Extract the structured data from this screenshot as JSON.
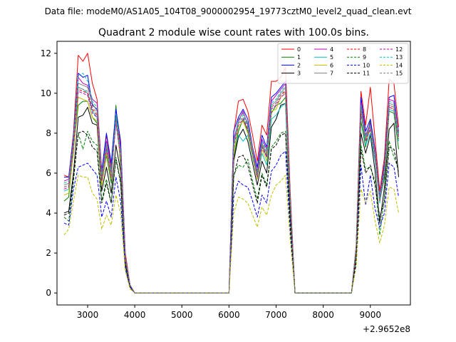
{
  "chart_data": {
    "type": "line",
    "suptitle": "Data file: modeM0/AS1A05_104T08_9000002954_19773cztM0_level2_quad_clean.evt",
    "title": "Quadrant 2 module wise count rates with 100.0s bins.",
    "xlabel": "",
    "ylabel": "",
    "x_offset_label": "+2.9652e8",
    "xlim": [
      2350,
      9850
    ],
    "ylim": [
      -0.6,
      12.6
    ],
    "x_ticks": [
      3000,
      4000,
      5000,
      6000,
      7000,
      8000,
      9000
    ],
    "y_ticks": [
      0,
      2,
      4,
      6,
      8,
      10,
      12
    ],
    "legend": {
      "position": "top-right",
      "columns": 4
    },
    "x": [
      2500,
      2600,
      2700,
      2800,
      2900,
      3000,
      3100,
      3200,
      3300,
      3400,
      3500,
      3600,
      3700,
      3800,
      3900,
      4000,
      4100,
      4200,
      4300,
      4400,
      4500,
      4600,
      4700,
      4800,
      4900,
      5000,
      5100,
      5200,
      5300,
      5400,
      5500,
      5600,
      5700,
      5800,
      5900,
      6000,
      6100,
      6200,
      6300,
      6400,
      6500,
      6600,
      6700,
      6800,
      6900,
      7000,
      7100,
      7200,
      7300,
      7400,
      7500,
      7600,
      7700,
      7800,
      7900,
      8000,
      8100,
      8200,
      8300,
      8400,
      8500,
      8600,
      8700,
      8800,
      8900,
      9000,
      9100,
      9200,
      9300,
      9400,
      9500,
      9600
    ],
    "series": [
      {
        "name": "0",
        "color": "#ff0000",
        "dash": false,
        "active": [
          5.9,
          5.8,
          8.0,
          11.9,
          11.6,
          12.0,
          10.5,
          9.7,
          6.1,
          7.9,
          6.3,
          8.7,
          7.5,
          2.0,
          0.4,
          0,
          0,
          0,
          0,
          0,
          0,
          0,
          0,
          0,
          0,
          0,
          0,
          0,
          0,
          0,
          0,
          0,
          0,
          0,
          0,
          0,
          8.0,
          9.6,
          9.7,
          9.1,
          7.9,
          6.6,
          8.4,
          7.9,
          10.6,
          10.6,
          10.8,
          11.3,
          5.0,
          0,
          0,
          0,
          0,
          0,
          0,
          0,
          0,
          0,
          0,
          0,
          0,
          0,
          2.4,
          10.1,
          8.4,
          10.3,
          7.7,
          5.1,
          6.8,
          10.7,
          10.5,
          8.3
        ]
      },
      {
        "name": "1",
        "color": "#008000",
        "dash": false,
        "active": [
          4.6,
          4.8,
          7.2,
          9.4,
          9.6,
          9.6,
          8.8,
          8.5,
          5.4,
          6.9,
          5.5,
          9.4,
          6.3,
          1.7,
          0.4,
          0,
          0,
          0,
          0,
          0,
          0,
          0,
          0,
          0,
          0,
          0,
          0,
          0,
          0,
          0,
          0,
          0,
          0,
          0,
          0,
          0,
          6.7,
          8.1,
          8.7,
          8.1,
          7.0,
          5.8,
          7.4,
          6.8,
          9.0,
          9.4,
          9.5,
          9.8,
          4.4,
          0,
          0,
          0,
          0,
          0,
          0,
          0,
          0,
          0,
          0,
          0,
          0,
          0,
          2.1,
          8.6,
          7.3,
          8.7,
          6.8,
          4.6,
          5.8,
          9.1,
          9.0,
          7.2
        ]
      },
      {
        "name": "2",
        "color": "#0000ff",
        "dash": false,
        "active": [
          5.8,
          5.8,
          7.8,
          11.0,
          10.8,
          10.9,
          9.4,
          9.2,
          6.1,
          8.0,
          6.5,
          9.2,
          7.6,
          1.8,
          0.4,
          0,
          0,
          0,
          0,
          0,
          0,
          0,
          0,
          0,
          0,
          0,
          0,
          0,
          0,
          0,
          0,
          0,
          0,
          0,
          0,
          0,
          8.1,
          8.8,
          9.2,
          8.7,
          7.3,
          6.3,
          7.9,
          7.3,
          9.8,
          10.0,
          10.3,
          10.6,
          4.8,
          0,
          0,
          0,
          0,
          0,
          0,
          0,
          0,
          0,
          0,
          0,
          0,
          0,
          2.3,
          9.8,
          8.1,
          8.7,
          7.2,
          4.8,
          6.5,
          9.8,
          9.9,
          8.0
        ]
      },
      {
        "name": "3",
        "color": "#000000",
        "dash": false,
        "active": [
          4.0,
          4.1,
          6.0,
          8.8,
          8.9,
          9.3,
          8.5,
          8.4,
          5.1,
          6.3,
          5.0,
          7.4,
          6.1,
          1.5,
          0.3,
          0,
          0,
          0,
          0,
          0,
          0,
          0,
          0,
          0,
          0,
          0,
          0,
          0,
          0,
          0,
          0,
          0,
          0,
          0,
          0,
          0,
          6.6,
          7.8,
          8.2,
          7.6,
          6.5,
          5.4,
          6.6,
          6.0,
          8.3,
          8.7,
          9.4,
          9.5,
          4.0,
          0,
          0,
          0,
          0,
          0,
          0,
          0,
          0,
          0,
          0,
          0,
          0,
          0,
          1.9,
          8.0,
          7.0,
          7.9,
          6.1,
          3.5,
          5.3,
          8.2,
          8.5,
          5.8
        ]
      },
      {
        "name": "4",
        "color": "#bf00bf",
        "dash": false,
        "active": [
          5.6,
          5.7,
          7.6,
          10.8,
          10.5,
          10.4,
          9.7,
          9.5,
          6.0,
          7.6,
          6.2,
          8.5,
          7.3,
          1.8,
          0.4,
          0,
          0,
          0,
          0,
          0,
          0,
          0,
          0,
          0,
          0,
          0,
          0,
          0,
          0,
          0,
          0,
          0,
          0,
          0,
          0,
          0,
          7.7,
          8.6,
          9.1,
          8.4,
          7.3,
          6.1,
          7.7,
          7.2,
          9.6,
          9.9,
          10.2,
          10.5,
          4.7,
          0,
          0,
          0,
          0,
          0,
          0,
          0,
          0,
          0,
          0,
          0,
          0,
          0,
          2.3,
          9.5,
          7.9,
          8.5,
          7.1,
          4.7,
          6.3,
          9.7,
          9.6,
          8.1
        ]
      },
      {
        "name": "5",
        "color": "#00bfbf",
        "dash": false,
        "active": [
          5.1,
          5.2,
          7.4,
          10.3,
          10.2,
          10.0,
          9.1,
          8.8,
          5.6,
          7.2,
          5.9,
          8.6,
          6.8,
          1.7,
          0.4,
          0,
          0,
          0,
          0,
          0,
          0,
          0,
          0,
          0,
          0,
          0,
          0,
          0,
          0,
          0,
          0,
          0,
          0,
          0,
          0,
          0,
          7.2,
          7.9,
          7.6,
          7.9,
          6.8,
          5.7,
          7.0,
          6.4,
          8.7,
          8.9,
          9.3,
          9.5,
          4.4,
          0,
          0,
          0,
          0,
          0,
          0,
          0,
          0,
          0,
          0,
          0,
          0,
          0,
          2.2,
          9.0,
          7.4,
          8.0,
          6.6,
          4.5,
          6.0,
          9.2,
          9.1,
          7.6
        ]
      },
      {
        "name": "6",
        "color": "#bfbf00",
        "dash": false,
        "active": [
          4.9,
          5.0,
          7.0,
          9.8,
          9.7,
          9.6,
          8.8,
          8.6,
          5.4,
          7.0,
          5.7,
          8.6,
          6.6,
          1.7,
          0.4,
          0,
          0,
          0,
          0,
          0,
          0,
          0,
          0,
          0,
          0,
          0,
          0,
          0,
          0,
          0,
          0,
          0,
          0,
          0,
          0,
          0,
          7.0,
          8.3,
          8.6,
          8.0,
          6.9,
          5.7,
          7.2,
          6.6,
          9.1,
          9.2,
          9.8,
          10.0,
          4.5,
          0,
          0,
          0,
          0,
          0,
          0,
          0,
          0,
          0,
          0,
          0,
          0,
          0,
          2.2,
          9.1,
          7.6,
          8.2,
          6.8,
          4.6,
          6.1,
          9.3,
          9.2,
          7.7
        ]
      },
      {
        "name": "7",
        "color": "#808080",
        "dash": false,
        "active": [
          5.4,
          5.5,
          7.5,
          10.5,
          10.4,
          10.3,
          9.5,
          9.1,
          5.8,
          7.4,
          6.0,
          8.8,
          7.0,
          1.8,
          0.4,
          0,
          0,
          0,
          0,
          0,
          0,
          0,
          0,
          0,
          0,
          0,
          0,
          0,
          0,
          0,
          0,
          0,
          0,
          0,
          0,
          0,
          7.5,
          8.7,
          9.0,
          8.5,
          7.2,
          6.0,
          7.5,
          7.0,
          9.4,
          9.6,
          10.0,
          10.3,
          4.6,
          0,
          0,
          0,
          0,
          0,
          0,
          0,
          0,
          0,
          0,
          0,
          0,
          0,
          2.3,
          9.3,
          7.8,
          8.4,
          7.0,
          4.7,
          6.2,
          9.5,
          9.4,
          7.9
        ]
      },
      {
        "name": "8",
        "color": "#ff0000",
        "dash": true,
        "active": [
          5.3,
          5.4,
          7.4,
          10.2,
          10.1,
          10.0,
          9.2,
          8.9,
          5.7,
          7.3,
          5.9,
          8.7,
          6.9,
          1.7,
          0.4,
          0,
          0,
          0,
          0,
          0,
          0,
          0,
          0,
          0,
          0,
          0,
          0,
          0,
          0,
          0,
          0,
          0,
          0,
          0,
          0,
          0,
          7.4,
          8.5,
          8.8,
          8.3,
          7.1,
          5.9,
          7.4,
          6.9,
          9.3,
          9.5,
          9.9,
          10.1,
          4.5,
          0,
          0,
          0,
          0,
          0,
          0,
          0,
          0,
          0,
          0,
          0,
          0,
          0,
          2.2,
          9.2,
          7.7,
          8.3,
          6.9,
          4.6,
          6.2,
          9.4,
          9.3,
          7.8
        ]
      },
      {
        "name": "9",
        "color": "#008000",
        "dash": true,
        "active": [
          3.8,
          3.6,
          5.6,
          8.0,
          7.2,
          8.1,
          7.6,
          7.4,
          4.6,
          5.7,
          4.5,
          6.8,
          5.6,
          1.4,
          0.3,
          0,
          0,
          0,
          0,
          0,
          0,
          0,
          0,
          0,
          0,
          0,
          0,
          0,
          0,
          0,
          0,
          0,
          0,
          0,
          0,
          0,
          5.9,
          6.4,
          6.3,
          6.7,
          5.6,
          4.7,
          6.0,
          5.4,
          7.3,
          7.6,
          8.0,
          8.1,
          3.6,
          0,
          0,
          0,
          0,
          0,
          0,
          0,
          0,
          0,
          0,
          0,
          0,
          0,
          1.8,
          7.4,
          6.2,
          6.3,
          5.6,
          2.9,
          4.8,
          7.6,
          6.8,
          6.2
        ]
      },
      {
        "name": "10",
        "color": "#0000ff",
        "dash": true,
        "active": [
          3.5,
          3.4,
          5.2,
          6.3,
          6.4,
          6.5,
          6.2,
          5.9,
          3.8,
          4.6,
          3.8,
          5.8,
          4.6,
          1.2,
          0.3,
          0,
          0,
          0,
          0,
          0,
          0,
          0,
          0,
          0,
          0,
          0,
          0,
          0,
          0,
          0,
          0,
          0,
          0,
          0,
          0,
          0,
          4.8,
          5.6,
          5.4,
          5.3,
          4.6,
          3.8,
          4.9,
          4.5,
          6.1,
          6.4,
          6.9,
          7.1,
          3.0,
          0,
          0,
          0,
          0,
          0,
          0,
          0,
          0,
          0,
          0,
          0,
          0,
          0,
          1.5,
          6.4,
          4.4,
          5.9,
          4.2,
          3.3,
          4.0,
          6.5,
          6.3,
          4.8
        ]
      },
      {
        "name": "11",
        "color": "#000000",
        "dash": true,
        "active": [
          3.9,
          4.0,
          5.7,
          8.0,
          8.1,
          7.9,
          7.3,
          7.1,
          4.5,
          5.5,
          4.5,
          6.7,
          5.5,
          1.4,
          0.3,
          0,
          0,
          0,
          0,
          0,
          0,
          0,
          0,
          0,
          0,
          0,
          0,
          0,
          0,
          0,
          0,
          0,
          0,
          0,
          0,
          0,
          5.8,
          6.8,
          6.9,
          6.4,
          5.4,
          4.5,
          5.9,
          5.3,
          7.2,
          7.4,
          7.9,
          8.0,
          3.5,
          0,
          0,
          0,
          0,
          0,
          0,
          0,
          0,
          0,
          0,
          0,
          0,
          0,
          1.7,
          7.2,
          6.0,
          6.4,
          5.4,
          3.8,
          4.6,
          7.3,
          7.2,
          6.0
        ]
      },
      {
        "name": "12",
        "color": "#bf00bf",
        "dash": true,
        "active": [
          5.2,
          5.3,
          7.3,
          10.1,
          10.0,
          9.9,
          9.0,
          8.8,
          5.6,
          7.2,
          5.8,
          8.5,
          6.8,
          1.7,
          0.4,
          0,
          0,
          0,
          0,
          0,
          0,
          0,
          0,
          0,
          0,
          0,
          0,
          0,
          0,
          0,
          0,
          0,
          0,
          0,
          0,
          0,
          7.3,
          8.4,
          8.7,
          8.2,
          7.0,
          5.8,
          7.3,
          6.8,
          9.2,
          9.4,
          9.8,
          10.0,
          4.5,
          0,
          0,
          0,
          0,
          0,
          0,
          0,
          0,
          0,
          0,
          0,
          0,
          0,
          2.2,
          9.1,
          7.6,
          8.2,
          6.8,
          4.6,
          6.1,
          9.3,
          9.2,
          7.7
        ]
      },
      {
        "name": "13",
        "color": "#00bfbf",
        "dash": true,
        "active": [
          5.5,
          5.6,
          7.7,
          10.9,
          11.0,
          10.6,
          9.6,
          9.3,
          5.9,
          7.5,
          6.1,
          8.9,
          7.1,
          1.8,
          0.4,
          0,
          0,
          0,
          0,
          0,
          0,
          0,
          0,
          0,
          0,
          0,
          0,
          0,
          0,
          0,
          0,
          0,
          0,
          0,
          0,
          0,
          7.6,
          8.6,
          8.9,
          8.4,
          7.2,
          6.0,
          7.6,
          7.1,
          9.5,
          9.7,
          10.1,
          10.4,
          4.6,
          0,
          0,
          0,
          0,
          0,
          0,
          0,
          0,
          0,
          0,
          0,
          0,
          0,
          2.3,
          9.4,
          7.8,
          8.4,
          7.0,
          4.7,
          6.3,
          9.6,
          9.5,
          8.0
        ]
      },
      {
        "name": "14",
        "color": "#bfbf00",
        "dash": true,
        "active": [
          2.9,
          3.2,
          4.6,
          5.9,
          5.8,
          5.8,
          5.0,
          4.7,
          3.2,
          3.9,
          3.4,
          4.9,
          4.0,
          1.1,
          0.2,
          0,
          0,
          0,
          0,
          0,
          0,
          0,
          0,
          0,
          0,
          0,
          0,
          0,
          0,
          0,
          0,
          0,
          0,
          0,
          0,
          0,
          4.0,
          4.8,
          4.7,
          4.5,
          3.9,
          3.3,
          4.3,
          3.9,
          4.9,
          5.4,
          5.6,
          5.9,
          2.6,
          0,
          0,
          0,
          0,
          0,
          0,
          0,
          0,
          0,
          0,
          0,
          0,
          0,
          1.3,
          5.2,
          4.5,
          5.1,
          3.6,
          2.5,
          3.4,
          5.3,
          5.2,
          4.0
        ]
      },
      {
        "name": "15",
        "color": "#808080",
        "dash": true,
        "active": [
          5.3,
          5.4,
          7.4,
          10.3,
          10.2,
          10.1,
          9.3,
          9.0,
          5.7,
          7.3,
          5.9,
          8.6,
          6.9,
          1.7,
          0.4,
          0,
          0,
          0,
          0,
          0,
          0,
          0,
          0,
          0,
          0,
          0,
          0,
          0,
          0,
          0,
          0,
          0,
          0,
          0,
          0,
          0,
          7.4,
          8.5,
          8.8,
          8.3,
          7.1,
          5.9,
          7.4,
          6.9,
          9.3,
          9.5,
          9.9,
          10.2,
          4.5,
          0,
          0,
          0,
          0,
          0,
          0,
          0,
          0,
          0,
          0,
          0,
          0,
          0,
          2.2,
          9.2,
          7.7,
          8.3,
          6.9,
          4.6,
          6.2,
          9.4,
          9.3,
          7.8
        ]
      }
    ]
  }
}
